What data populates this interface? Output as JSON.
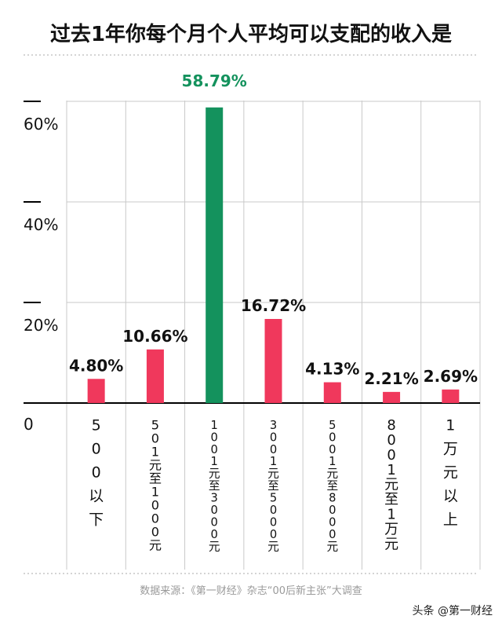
{
  "chart_data": {
    "type": "bar",
    "title": "过去1年你每个月个人平均可以支配的收入是",
    "categories": [
      "500以下",
      "501元至1000元",
      "1001元至3000元",
      "3001元至5000元",
      "5001元至8000元",
      "8001元至1万元",
      "1万元以上"
    ],
    "values": [
      4.8,
      10.66,
      58.79,
      16.72,
      4.13,
      2.21,
      2.69
    ],
    "value_labels": [
      "4.80%",
      "10.66%",
      "58.79%",
      "16.72%",
      "4.13%",
      "2.21%",
      "2.69%"
    ],
    "highlight_index": 2,
    "ylim": [
      0,
      60
    ],
    "y_ticks": [
      0,
      20,
      40,
      60
    ],
    "y_tick_labels": [
      "0",
      "20%",
      "40%",
      "60%"
    ],
    "grid": true,
    "source": "数据来源：《第一财经》杂志“00后新主张”大调查",
    "watermark": "头条 @第一财经"
  },
  "colors": {
    "bar": "#f0385c",
    "highlight": "#14925d",
    "highlight_label": "#14925d",
    "grid": "#c9c9c9",
    "text": "#111111",
    "axis": "#000000",
    "source_text": "#9a9a9a",
    "divider": "#aaaaaa"
  }
}
